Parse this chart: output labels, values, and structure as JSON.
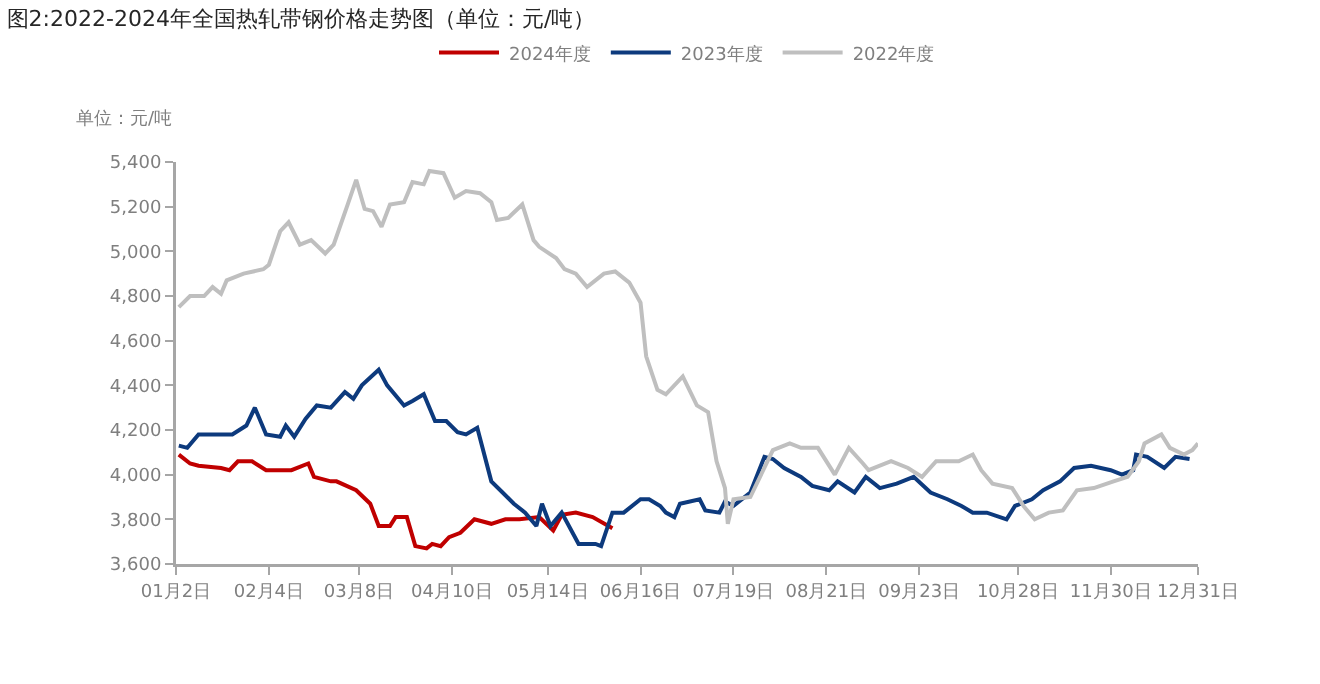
{
  "chart_data": {
    "type": "line",
    "title": "图2:2022-2024年全国热轧带钢价格走势图（单位：元/吨）",
    "ylabel": "单位：元/吨",
    "xlim": [
      "--01-02",
      "--12-31"
    ],
    "xticks": [
      {
        "value": "--01-02",
        "label": "01月2日"
      },
      {
        "value": "--02-04",
        "label": "02月4日"
      },
      {
        "value": "--03-08",
        "label": "03月8日"
      },
      {
        "value": "--04-10",
        "label": "04月10日"
      },
      {
        "value": "--05-14",
        "label": "05月14日"
      },
      {
        "value": "--06-16",
        "label": "06月16日"
      },
      {
        "value": "--07-19",
        "label": "07月19日"
      },
      {
        "value": "--08-21",
        "label": "08月21日"
      },
      {
        "value": "--09-23",
        "label": "09月23日"
      },
      {
        "value": "--10-28",
        "label": "10月28日"
      },
      {
        "value": "--11-30",
        "label": "11月30日"
      },
      {
        "value": "--12-31",
        "label": "12月31日"
      }
    ],
    "ylim": [
      3600,
      5400
    ],
    "yticks": [
      {
        "value": 3600,
        "label": "3,600"
      },
      {
        "value": 3800,
        "label": "3,800"
      },
      {
        "value": 4000,
        "label": "4,000"
      },
      {
        "value": 4200,
        "label": "4,200"
      },
      {
        "value": 4400,
        "label": "4,400"
      },
      {
        "value": 4600,
        "label": "4,600"
      },
      {
        "value": 4800,
        "label": "4,800"
      },
      {
        "value": 5000,
        "label": "5,000"
      },
      {
        "value": 5200,
        "label": "5,200"
      },
      {
        "value": 5400,
        "label": "5,400"
      }
    ],
    "grid": false,
    "legend": "top",
    "marker": "none",
    "line_style": "solid",
    "series": [
      {
        "name": "2024年度",
        "color": "#c00000",
        "x": [
          "--01-03",
          "--01-07",
          "--01-10",
          "--01-18",
          "--01-21",
          "--01-24",
          "--01-29",
          "--02-03",
          "--02-12",
          "--02-18",
          "--02-20",
          "--02-26",
          "--02-28",
          "--03-07",
          "--03-12",
          "--03-15",
          "--03-19",
          "--03-21",
          "--03-25",
          "--03-28",
          "--04-01",
          "--04-03",
          "--04-06",
          "--04-09",
          "--04-13",
          "--04-18",
          "--04-24",
          "--04-29",
          "--05-04",
          "--05-11",
          "--05-16",
          "--05-19",
          "--05-24",
          "--05-30",
          "--06-06"
        ],
        "values": [
          4090,
          4050,
          4040,
          4030,
          4020,
          4060,
          4060,
          4020,
          4020,
          4050,
          3990,
          3970,
          3970,
          3930,
          3870,
          3770,
          3770,
          3810,
          3810,
          3680,
          3670,
          3690,
          3680,
          3720,
          3740,
          3800,
          3780,
          3800,
          3800,
          3810,
          3750,
          3820,
          3830,
          3810,
          3760
        ]
      },
      {
        "name": "2023年度",
        "color": "#0d3a7d",
        "x": [
          "--01-03",
          "--01-06",
          "--01-10",
          "--01-15",
          "--01-22",
          "--01-27",
          "--01-30",
          "--02-03",
          "--02-08",
          "--02-10",
          "--02-13",
          "--02-17",
          "--02-21",
          "--02-26",
          "--03-03",
          "--03-06",
          "--03-09",
          "--03-15",
          "--03-18",
          "--03-24",
          "--03-27",
          "--03-31",
          "--04-04",
          "--04-08",
          "--04-12",
          "--04-15",
          "--04-19",
          "--04-24",
          "--04-28",
          "--05-02",
          "--05-06",
          "--05-10",
          "--05-12",
          "--05-15",
          "--05-19",
          "--05-25",
          "--05-31",
          "--06-02",
          "--06-06",
          "--06-10",
          "--06-16",
          "--06-19",
          "--06-23",
          "--06-25",
          "--06-28",
          "--06-30",
          "--07-07",
          "--07-09",
          "--07-14",
          "--07-16",
          "--07-19",
          "--07-25",
          "--07-30",
          "--08-02",
          "--08-06",
          "--08-12",
          "--08-16",
          "--08-22",
          "--08-25",
          "--08-31",
          "--09-04",
          "--09-09",
          "--09-15",
          "--09-21",
          "--09-27",
          "--10-03",
          "--10-08",
          "--10-12",
          "--10-17",
          "--10-24",
          "--10-27",
          "--11-02",
          "--11-06",
          "--11-12",
          "--11-17",
          "--11-23",
          "--11-30",
          "--12-04",
          "--12-08",
          "--12-09",
          "--12-13",
          "--12-19",
          "--12-23",
          "--12-28"
        ],
        "values": [
          4130,
          4120,
          4180,
          4180,
          4180,
          4220,
          4300,
          4180,
          4170,
          4220,
          4170,
          4250,
          4310,
          4300,
          4370,
          4340,
          4400,
          4470,
          4400,
          4310,
          4330,
          4360,
          4240,
          4240,
          4190,
          4180,
          4210,
          3970,
          3920,
          3870,
          3830,
          3770,
          3870,
          3770,
          3830,
          3690,
          3690,
          3680,
          3830,
          3830,
          3890,
          3890,
          3860,
          3830,
          3810,
          3870,
          3890,
          3840,
          3830,
          3880,
          3860,
          3920,
          4080,
          4070,
          4030,
          3990,
          3950,
          3930,
          3970,
          3920,
          3990,
          3940,
          3960,
          3990,
          3920,
          3890,
          3860,
          3830,
          3830,
          3800,
          3860,
          3890,
          3930,
          3970,
          4030,
          4040,
          4020,
          4000,
          4020,
          4090,
          4080,
          4030,
          4080,
          4070
        ]
      },
      {
        "name": "2022年度",
        "color": "#bfbfbf",
        "x": [
          "--01-03",
          "--01-07",
          "--01-12",
          "--01-15",
          "--01-18",
          "--01-20",
          "--01-26",
          "--02-02",
          "--02-04",
          "--02-08",
          "--02-11",
          "--02-15",
          "--02-19",
          "--02-24",
          "--02-27",
          "--03-04",
          "--03-07",
          "--03-10",
          "--03-13",
          "--03-16",
          "--03-19",
          "--03-24",
          "--03-27",
          "--03-31",
          "--04-02",
          "--04-07",
          "--04-11",
          "--04-15",
          "--04-20",
          "--04-24",
          "--04-26",
          "--04-30",
          "--05-05",
          "--05-09",
          "--05-11",
          "--05-17",
          "--05-20",
          "--05-24",
          "--05-28",
          "--06-03",
          "--06-07",
          "--06-12",
          "--06-16",
          "--06-18",
          "--06-22",
          "--06-25",
          "--07-01",
          "--07-06",
          "--07-10",
          "--07-13",
          "--07-16",
          "--07-17",
          "--07-19",
          "--07-25",
          "--08-02",
          "--08-08",
          "--08-12",
          "--08-18",
          "--08-24",
          "--08-29",
          "--09-03",
          "--09-05",
          "--09-13",
          "--09-19",
          "--09-24",
          "--09-29",
          "--10-07",
          "--10-12",
          "--10-15",
          "--10-19",
          "--10-26",
          "--10-30",
          "--11-03",
          "--11-08",
          "--11-13",
          "--11-18",
          "--11-24",
          "--12-01",
          "--12-06",
          "--12-10",
          "--12-12",
          "--12-18",
          "--12-21",
          "--12-26",
          "--12-29",
          "--12-31"
        ],
        "values": [
          4750,
          4800,
          4800,
          4840,
          4810,
          4870,
          4900,
          4920,
          4940,
          5090,
          5130,
          5030,
          5050,
          4990,
          5030,
          5210,
          5320,
          5190,
          5180,
          5110,
          5210,
          5220,
          5310,
          5300,
          5360,
          5350,
          5240,
          5270,
          5260,
          5220,
          5140,
          5150,
          5210,
          5050,
          5020,
          4970,
          4920,
          4900,
          4840,
          4900,
          4910,
          4860,
          4770,
          4530,
          4380,
          4360,
          4440,
          4310,
          4280,
          4060,
          3940,
          3780,
          3890,
          3900,
          4110,
          4140,
          4120,
          4120,
          4000,
          4120,
          4050,
          4020,
          4060,
          4030,
          3990,
          4060,
          4060,
          4090,
          4020,
          3960,
          3940,
          3860,
          3800,
          3830,
          3840,
          3930,
          3940,
          3970,
          3990,
          4060,
          4140,
          4180,
          4120,
          4090,
          4110,
          4140
        ]
      }
    ]
  }
}
